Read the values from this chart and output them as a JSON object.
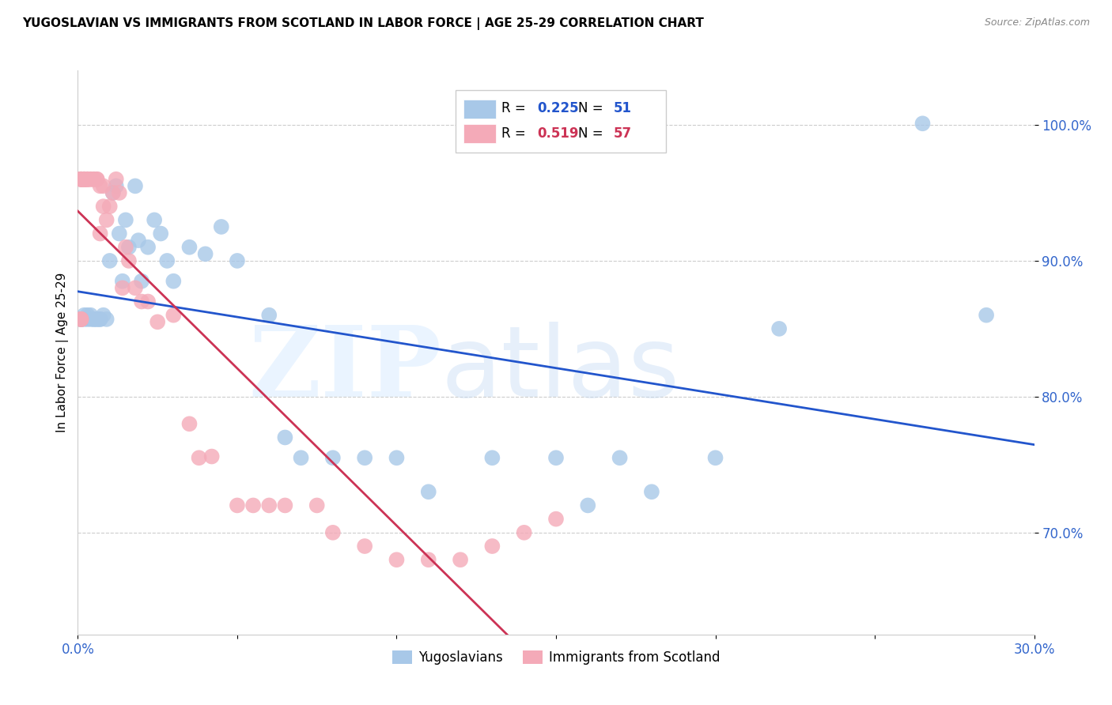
{
  "title": "YUGOSLAVIAN VS IMMIGRANTS FROM SCOTLAND IN LABOR FORCE | AGE 25-29 CORRELATION CHART",
  "source": "Source: ZipAtlas.com",
  "ylabel": "In Labor Force | Age 25-29",
  "xlim": [
    0.0,
    0.3
  ],
  "ylim": [
    0.625,
    1.04
  ],
  "xticks": [
    0.0,
    0.05,
    0.1,
    0.15,
    0.2,
    0.25,
    0.3
  ],
  "xticklabels": [
    "0.0%",
    "",
    "",
    "",
    "",
    "",
    "30.0%"
  ],
  "yticks": [
    0.7,
    0.8,
    0.9,
    1.0
  ],
  "yticklabels": [
    "70.0%",
    "80.0%",
    "90.0%",
    "100.0%"
  ],
  "blue_r": 0.225,
  "blue_n": 51,
  "pink_r": 0.519,
  "pink_n": 57,
  "blue_color": "#a8c8e8",
  "pink_color": "#f4aab8",
  "blue_line_color": "#2255cc",
  "pink_line_color": "#cc3355",
  "legend_blue_label": "Yugoslavians",
  "legend_pink_label": "Immigrants from Scotland",
  "blue_x": [
    0.001,
    0.001,
    0.002,
    0.002,
    0.003,
    0.003,
    0.004,
    0.004,
    0.005,
    0.005,
    0.006,
    0.006,
    0.007,
    0.007,
    0.008,
    0.009,
    0.01,
    0.011,
    0.012,
    0.013,
    0.014,
    0.015,
    0.016,
    0.018,
    0.019,
    0.02,
    0.022,
    0.024,
    0.026,
    0.028,
    0.03,
    0.035,
    0.04,
    0.045,
    0.05,
    0.06,
    0.065,
    0.07,
    0.08,
    0.09,
    0.1,
    0.11,
    0.13,
    0.15,
    0.16,
    0.17,
    0.18,
    0.2,
    0.22,
    0.265,
    0.285
  ],
  "blue_y": [
    0.857,
    0.857,
    0.857,
    0.86,
    0.86,
    0.857,
    0.86,
    0.857,
    0.857,
    0.857,
    0.857,
    0.857,
    0.857,
    0.857,
    0.86,
    0.857,
    0.9,
    0.95,
    0.955,
    0.92,
    0.885,
    0.93,
    0.91,
    0.955,
    0.915,
    0.885,
    0.91,
    0.93,
    0.92,
    0.9,
    0.885,
    0.91,
    0.905,
    0.925,
    0.9,
    0.86,
    0.77,
    0.755,
    0.755,
    0.755,
    0.755,
    0.73,
    0.755,
    0.755,
    0.72,
    0.755,
    0.73,
    0.755,
    0.85,
    1.001,
    0.86
  ],
  "pink_x": [
    0.001,
    0.001,
    0.001,
    0.001,
    0.001,
    0.001,
    0.001,
    0.001,
    0.001,
    0.002,
    0.002,
    0.002,
    0.002,
    0.002,
    0.003,
    0.003,
    0.003,
    0.003,
    0.004,
    0.004,
    0.005,
    0.005,
    0.006,
    0.006,
    0.007,
    0.007,
    0.008,
    0.008,
    0.009,
    0.01,
    0.011,
    0.012,
    0.013,
    0.014,
    0.015,
    0.016,
    0.018,
    0.02,
    0.022,
    0.025,
    0.03,
    0.035,
    0.038,
    0.042,
    0.05,
    0.055,
    0.06,
    0.065,
    0.075,
    0.08,
    0.09,
    0.1,
    0.11,
    0.12,
    0.13,
    0.14,
    0.15
  ],
  "pink_y": [
    0.857,
    0.857,
    0.857,
    0.857,
    0.96,
    0.96,
    0.96,
    0.96,
    0.96,
    0.96,
    0.96,
    0.96,
    0.96,
    0.96,
    0.96,
    0.96,
    0.96,
    0.96,
    0.96,
    0.96,
    0.96,
    0.96,
    0.96,
    0.96,
    0.92,
    0.955,
    0.955,
    0.94,
    0.93,
    0.94,
    0.95,
    0.96,
    0.95,
    0.88,
    0.91,
    0.9,
    0.88,
    0.87,
    0.87,
    0.855,
    0.86,
    0.78,
    0.755,
    0.756,
    0.72,
    0.72,
    0.72,
    0.72,
    0.72,
    0.7,
    0.69,
    0.68,
    0.68,
    0.68,
    0.69,
    0.7,
    0.71
  ]
}
